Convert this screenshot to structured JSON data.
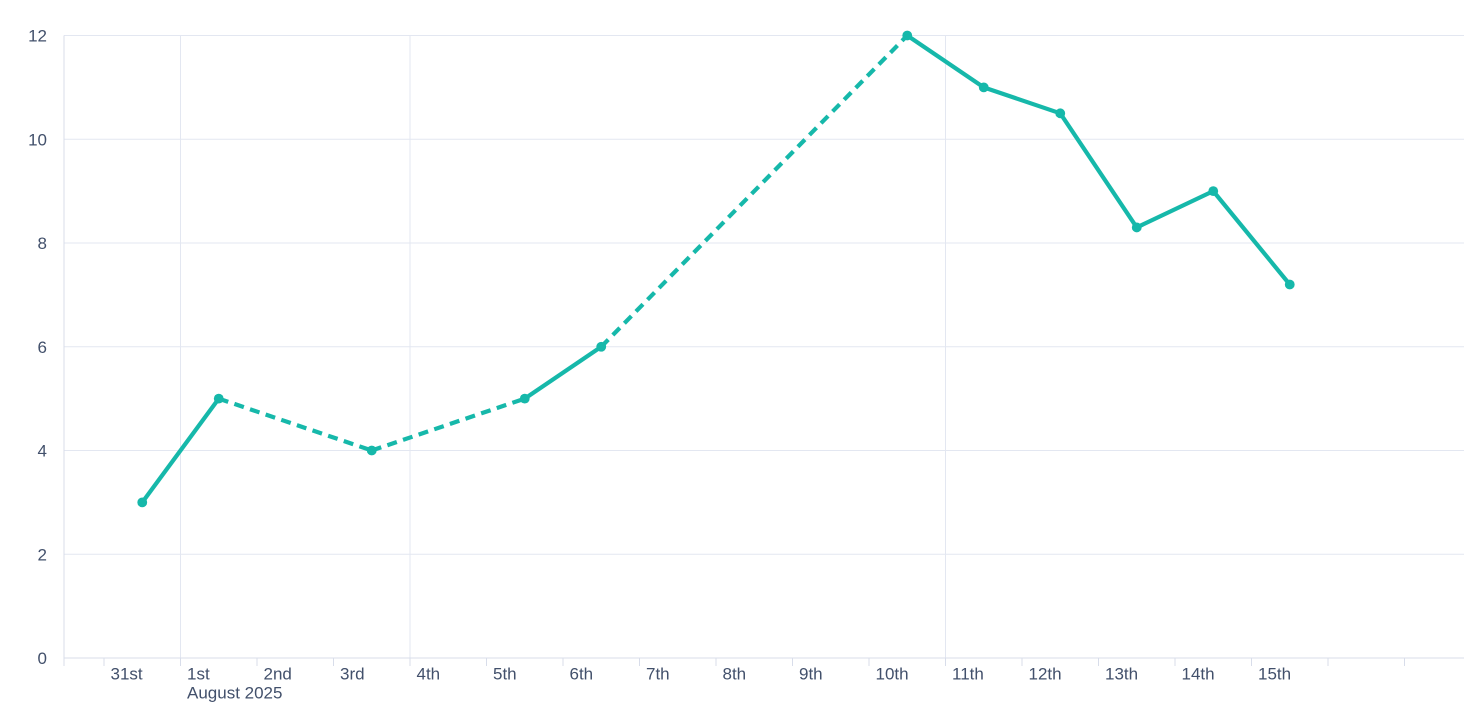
{
  "chart_data": {
    "type": "line",
    "title": "",
    "xlabel": "",
    "ylabel": "",
    "legend": "none",
    "x_axis": {
      "categories": [
        "31st",
        "1st",
        "2nd",
        "3rd",
        "4th",
        "5th",
        "6th",
        "7th",
        "8th",
        "9th",
        "10th",
        "11th",
        "12th",
        "13th",
        "14th",
        "15th"
      ],
      "month_label": "August 2025",
      "month_label_under_category": "1st",
      "trailing_unlabeled_ticks": 1
    },
    "y_axis": {
      "min": 0,
      "max": 12,
      "ticks": [
        0,
        2,
        4,
        6,
        8,
        10,
        12
      ],
      "tick_labels": [
        "0",
        "2",
        "4",
        "6",
        "8",
        "10",
        "12"
      ]
    },
    "grid": {
      "horizontal": true,
      "vertical_at_categories": [
        "1st",
        "4th",
        "11th"
      ]
    },
    "series": [
      {
        "name": "series-1",
        "line_style": "solid",
        "gap_bridge_style": "dashed",
        "points": [
          {
            "category": "31st",
            "value": 3
          },
          {
            "category": "1st",
            "value": 5
          },
          {
            "category": "3rd",
            "value": 4
          },
          {
            "category": "5th",
            "value": 5
          },
          {
            "category": "6th",
            "value": 6
          },
          {
            "category": "10th",
            "value": 12
          },
          {
            "category": "11th",
            "value": 11
          },
          {
            "category": "12th",
            "value": 10.5
          },
          {
            "category": "13th",
            "value": 8.3
          },
          {
            "category": "14th",
            "value": 9
          },
          {
            "category": "15th",
            "value": 7.2
          }
        ]
      }
    ]
  },
  "theme": {
    "line_color": "#16b8aa",
    "marker_color": "#16b8aa",
    "grid_color": "#e3e7f1",
    "axis_color": "#d8ddea",
    "text_color": "#42506b",
    "background_color": "#ffffff"
  }
}
